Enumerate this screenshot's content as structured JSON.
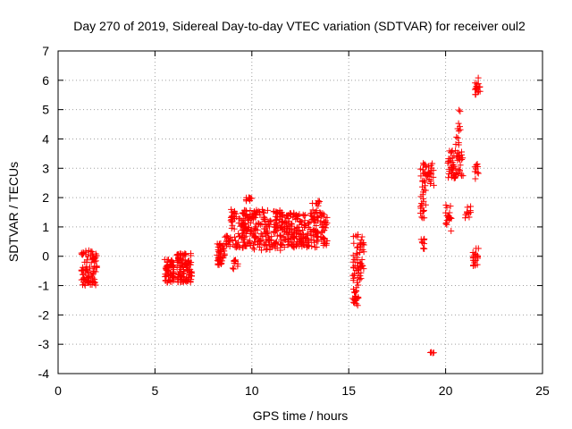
{
  "chart_data": {
    "type": "scatter",
    "title": "Day 270 of 2019, Sidereal Day-to-day VTEC variation (SDTVAR) for receiver oul2",
    "xlabel": "GPS time / hours",
    "ylabel": "SDTVAR / TECUs",
    "xlim": [
      0,
      25
    ],
    "ylim": [
      -4,
      7
    ],
    "xticks": [
      "0",
      "5",
      "10",
      "15",
      "20",
      "25"
    ],
    "yticks": [
      "-4",
      "-3",
      "-2",
      "-1",
      "0",
      "1",
      "2",
      "3",
      "4",
      "5",
      "6",
      "7"
    ],
    "grid": true,
    "marker": "plus",
    "color": "#ff0000",
    "clusters": [
      {
        "x": [
          1.2,
          2.0
        ],
        "y": [
          -1.0,
          0.2
        ],
        "n": 90
      },
      {
        "x": [
          5.5,
          6.0
        ],
        "y": [
          -0.9,
          -0.1
        ],
        "n": 60
      },
      {
        "x": [
          6.1,
          6.9
        ],
        "y": [
          -0.9,
          0.1
        ],
        "n": 100
      },
      {
        "x": [
          8.2,
          8.6
        ],
        "y": [
          -0.3,
          0.5
        ],
        "n": 40
      },
      {
        "x": [
          8.6,
          9.4
        ],
        "y": [
          0.3,
          0.7
        ],
        "n": 30
      },
      {
        "x": [
          8.9,
          9.2
        ],
        "y": [
          0.9,
          1.6
        ],
        "n": 20
      },
      {
        "x": [
          9.0,
          9.3
        ],
        "y": [
          -0.6,
          -0.1
        ],
        "n": 10
      },
      {
        "x": [
          9.3,
          9.7
        ],
        "y": [
          0.6,
          1.3
        ],
        "n": 20
      },
      {
        "x": [
          9.7,
          10.0
        ],
        "y": [
          1.85,
          2.05
        ],
        "n": 10
      },
      {
        "x": [
          9.5,
          11.5
        ],
        "y": [
          0.2,
          1.6
        ],
        "n": 220
      },
      {
        "x": [
          11.5,
          13.9
        ],
        "y": [
          0.3,
          1.5
        ],
        "n": 240
      },
      {
        "x": [
          13.0,
          13.5
        ],
        "y": [
          1.5,
          1.9
        ],
        "n": 10
      },
      {
        "x": [
          15.2,
          15.5
        ],
        "y": [
          -1.7,
          0.8
        ],
        "n": 50
      },
      {
        "x": [
          15.5,
          15.8
        ],
        "y": [
          -0.8,
          0.7
        ],
        "n": 30
      },
      {
        "x": [
          18.7,
          18.9
        ],
        "y": [
          0.2,
          0.6
        ],
        "n": 10
      },
      {
        "x": [
          18.7,
          19.0
        ],
        "y": [
          1.3,
          3.3
        ],
        "n": 40
      },
      {
        "x": [
          19.0,
          19.4
        ],
        "y": [
          2.4,
          3.2
        ],
        "n": 20
      },
      {
        "x": [
          19.2,
          19.4
        ],
        "y": [
          -3.3,
          -3.2
        ],
        "n": 4
      },
      {
        "x": [
          20.0,
          20.3
        ],
        "y": [
          0.8,
          1.8
        ],
        "n": 20
      },
      {
        "x": [
          20.1,
          20.9
        ],
        "y": [
          2.6,
          3.6
        ],
        "n": 60
      },
      {
        "x": [
          20.5,
          20.8
        ],
        "y": [
          3.8,
          5.0
        ],
        "n": 12
      },
      {
        "x": [
          21.0,
          21.3
        ],
        "y": [
          1.3,
          1.8
        ],
        "n": 10
      },
      {
        "x": [
          21.4,
          21.7
        ],
        "y": [
          -0.4,
          0.3
        ],
        "n": 20
      },
      {
        "x": [
          21.5,
          21.7
        ],
        "y": [
          2.4,
          3.4
        ],
        "n": 10
      },
      {
        "x": [
          21.5,
          21.8
        ],
        "y": [
          5.5,
          6.1
        ],
        "n": 16
      }
    ]
  }
}
